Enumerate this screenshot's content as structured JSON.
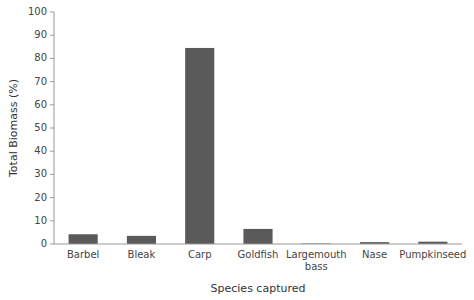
{
  "chart_data": {
    "type": "bar",
    "xlabel": "Species captured",
    "ylabel": "Total Biomass (%)",
    "categories": [
      "Barbel",
      "Bleak",
      "Carp",
      "Goldfish",
      "Largemouth\nbass",
      "Nase",
      "Pumpkinseed"
    ],
    "values": [
      4.2,
      3.5,
      84.5,
      6.5,
      0.2,
      0.8,
      1.0
    ],
    "color": "#5a5a5a",
    "ylim": [
      0,
      100
    ],
    "yticks": [
      0,
      10,
      20,
      30,
      40,
      50,
      60,
      70,
      80,
      90,
      100
    ],
    "grid": false
  }
}
